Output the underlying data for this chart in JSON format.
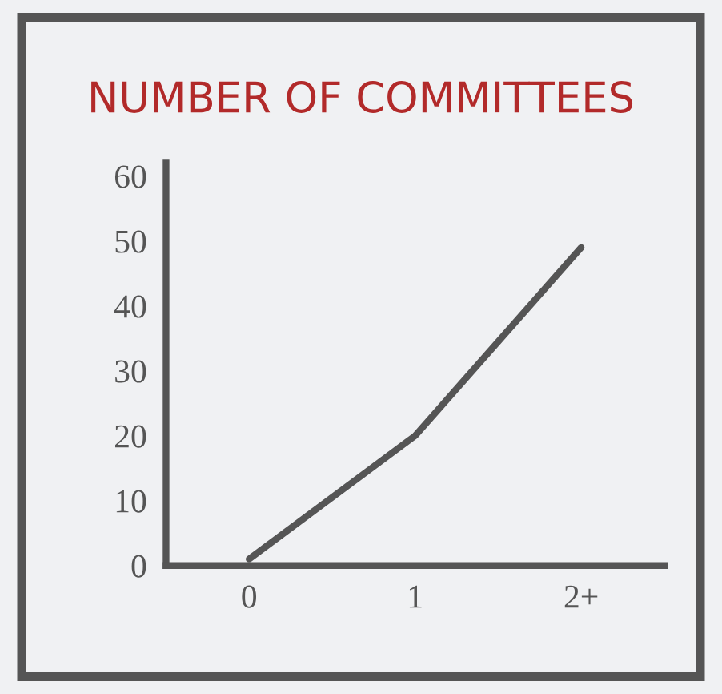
{
  "chart_data": {
    "type": "line",
    "title": "NUMBER OF COMMITTEES",
    "categories": [
      "0",
      "1",
      "2+"
    ],
    "series": [
      {
        "color": "#555555",
        "values": [
          1,
          20,
          49
        ]
      }
    ],
    "ylim": [
      0,
      62
    ],
    "yticks": [
      0,
      10,
      20,
      30,
      40,
      50,
      60
    ],
    "grid": false,
    "legend": false
  }
}
